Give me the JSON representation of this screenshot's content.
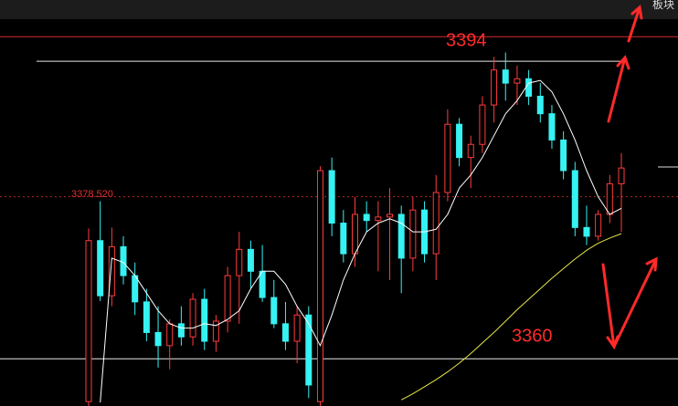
{
  "toolbar": {
    "label": "板块"
  },
  "chart_data": {
    "type": "candlestick",
    "ylim": [
      3354.6,
      3401.0
    ],
    "up_color": "#ff3b3b",
    "down_color": "#36f2f2",
    "candles": {
      "open": [
        3355.1,
        3373.5,
        3367.2,
        3372.8,
        3369.5,
        3366.5,
        3363.0,
        3361.5,
        3364.0,
        3362.5,
        3366.8,
        3362.0,
        3364.3,
        3369.5,
        3372.5,
        3370.0,
        3367.0,
        3364.0,
        3362.0,
        3365.0,
        3355.1,
        3381.5,
        3375.5,
        3372.0,
        3376.5,
        3375.8,
        3376.2,
        3376.5,
        3371.5,
        3377.0,
        3372.0,
        3379.0,
        3386.8,
        3383.0,
        3384.5,
        3389.0,
        3393.0,
        3391.5,
        3392.0,
        3390.0,
        3388.0,
        3385.0,
        3381.5,
        3375.0,
        3374.0,
        3376.5,
        3380.0
      ],
      "high": [
        3374.9,
        3378.0,
        3375.0,
        3374.0,
        3371.0,
        3368.0,
        3366.0,
        3364.5,
        3366.0,
        3367.5,
        3368.0,
        3365.0,
        3370.5,
        3374.5,
        3373.5,
        3373.0,
        3369.0,
        3366.5,
        3366.0,
        3366.0,
        3382.0,
        3383.0,
        3377.0,
        3378.5,
        3378.0,
        3378.0,
        3379.5,
        3377.5,
        3378.5,
        3378.0,
        3381.0,
        3388.5,
        3387.5,
        3385.5,
        3390.0,
        3394.5,
        3395.0,
        3393.5,
        3393.0,
        3391.5,
        3389.0,
        3386.0,
        3382.5,
        3377.5,
        3377.0,
        3381.0,
        3383.5
      ],
      "low": [
        3354.6,
        3366.6,
        3366.0,
        3368.5,
        3365.0,
        3362.0,
        3359.0,
        3358.8,
        3361.5,
        3361.5,
        3361.0,
        3360.8,
        3363.0,
        3364.0,
        3368.0,
        3366.5,
        3363.5,
        3361.0,
        3359.5,
        3355.5,
        3354.6,
        3374.0,
        3371.0,
        3370.5,
        3374.5,
        3370.0,
        3369.0,
        3367.5,
        3370.0,
        3371.0,
        3369.0,
        3378.0,
        3382.0,
        3379.5,
        3383.5,
        3387.0,
        3389.5,
        3389.0,
        3389.0,
        3387.0,
        3384.0,
        3380.5,
        3374.0,
        3373.0,
        3373.5,
        3375.5,
        3374.5
      ],
      "close": [
        3373.5,
        3367.2,
        3372.8,
        3369.5,
        3366.5,
        3363.0,
        3361.5,
        3364.0,
        3362.5,
        3366.8,
        3362.0,
        3364.3,
        3369.5,
        3372.5,
        3370.0,
        3367.0,
        3364.0,
        3362.0,
        3365.0,
        3357.0,
        3381.5,
        3375.5,
        3372.0,
        3376.5,
        3375.8,
        3376.2,
        3376.5,
        3371.5,
        3377.0,
        3372.0,
        3379.0,
        3386.8,
        3383.0,
        3384.5,
        3389.0,
        3393.0,
        3391.5,
        3392.0,
        3390.0,
        3388.0,
        3385.0,
        3381.5,
        3375.0,
        3374.0,
        3376.5,
        3380.0,
        3381.8
      ]
    },
    "series": [
      {
        "color": "#ffffff",
        "values": [
          null,
          3355,
          3371.5,
          3371.0,
          3369.5,
          3367.5,
          3365.5,
          3364.0,
          3363.5,
          3363.5,
          3364.0,
          3363.8,
          3364.5,
          3365.5,
          3368.0,
          3370.0,
          3370.0,
          3368.5,
          3366.0,
          3364.0,
          3361.5,
          3365.0,
          3369.0,
          3372.0,
          3374.5,
          3375.5,
          3376.0,
          3375.5,
          3374.5,
          3374.5,
          3374.8,
          3376.5,
          3379.5,
          3381.0,
          3383.0,
          3385.5,
          3388.0,
          3389.5,
          3391.5,
          3391.8,
          3390.5,
          3388.0,
          3385.0,
          3381.5,
          3378.5,
          3376.5,
          3377.2
        ]
      },
      {
        "color": "#e6e64a",
        "values": [
          null,
          null,
          null,
          null,
          null,
          null,
          null,
          null,
          null,
          null,
          null,
          null,
          null,
          null,
          null,
          null,
          null,
          null,
          null,
          null,
          null,
          null,
          null,
          null,
          null,
          null,
          null,
          3355.3,
          3356.0,
          3356.8,
          3357.6,
          3358.5,
          3359.5,
          3360.6,
          3361.8,
          3363.0,
          3364.3,
          3365.6,
          3366.8,
          3368.0,
          3369.2,
          3370.3,
          3371.4,
          3372.4,
          3373.2,
          3373.8,
          3374.3
        ]
      }
    ],
    "upper_line": {
      "value": 3396.8,
      "color": "#d42a2a"
    },
    "levels": [
      {
        "value": 3394,
        "color": "#e8e8e8"
      },
      {
        "value": 3360,
        "color": "#e8e8e8"
      }
    ],
    "price_line": {
      "value": 3378.52,
      "label": "3378.520",
      "color": "#e03030"
    }
  }
}
